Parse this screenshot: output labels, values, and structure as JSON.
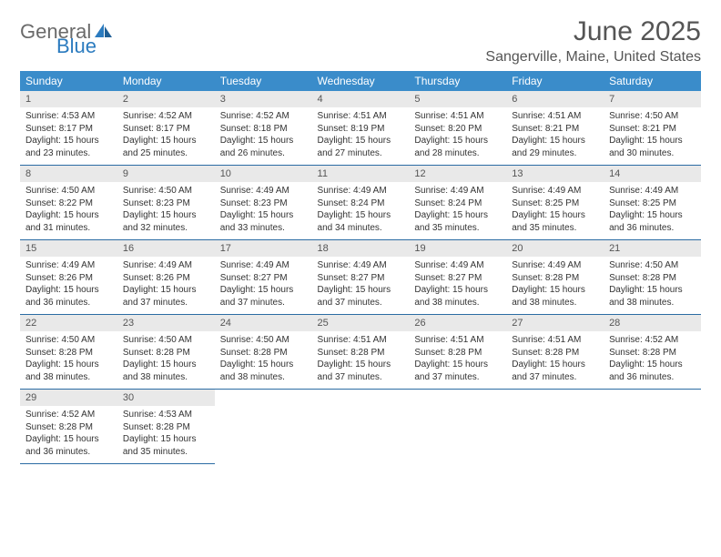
{
  "logo": {
    "part1": "General",
    "part2": "Blue"
  },
  "title": "June 2025",
  "location": "Sangerville, Maine, United States",
  "colors": {
    "header_bg": "#3a8cca",
    "header_text": "#ffffff",
    "daynum_bg": "#e9e9e9",
    "row_border": "#2b6ca3",
    "logo_grey": "#6a6a6a",
    "logo_blue": "#2b7bbf",
    "text": "#333333",
    "page_bg": "#ffffff"
  },
  "typography": {
    "title_fontsize": 30,
    "subtitle_fontsize": 16,
    "dayheader_fontsize": 12,
    "daynum_fontsize": 11,
    "body_fontsize": 10
  },
  "dayheaders": [
    "Sunday",
    "Monday",
    "Tuesday",
    "Wednesday",
    "Thursday",
    "Friday",
    "Saturday"
  ],
  "weeks": [
    [
      {
        "n": "1",
        "sr": "4:53 AM",
        "ss": "8:17 PM",
        "dl": "15 hours and 23 minutes."
      },
      {
        "n": "2",
        "sr": "4:52 AM",
        "ss": "8:17 PM",
        "dl": "15 hours and 25 minutes."
      },
      {
        "n": "3",
        "sr": "4:52 AM",
        "ss": "8:18 PM",
        "dl": "15 hours and 26 minutes."
      },
      {
        "n": "4",
        "sr": "4:51 AM",
        "ss": "8:19 PM",
        "dl": "15 hours and 27 minutes."
      },
      {
        "n": "5",
        "sr": "4:51 AM",
        "ss": "8:20 PM",
        "dl": "15 hours and 28 minutes."
      },
      {
        "n": "6",
        "sr": "4:51 AM",
        "ss": "8:21 PM",
        "dl": "15 hours and 29 minutes."
      },
      {
        "n": "7",
        "sr": "4:50 AM",
        "ss": "8:21 PM",
        "dl": "15 hours and 30 minutes."
      }
    ],
    [
      {
        "n": "8",
        "sr": "4:50 AM",
        "ss": "8:22 PM",
        "dl": "15 hours and 31 minutes."
      },
      {
        "n": "9",
        "sr": "4:50 AM",
        "ss": "8:23 PM",
        "dl": "15 hours and 32 minutes."
      },
      {
        "n": "10",
        "sr": "4:49 AM",
        "ss": "8:23 PM",
        "dl": "15 hours and 33 minutes."
      },
      {
        "n": "11",
        "sr": "4:49 AM",
        "ss": "8:24 PM",
        "dl": "15 hours and 34 minutes."
      },
      {
        "n": "12",
        "sr": "4:49 AM",
        "ss": "8:24 PM",
        "dl": "15 hours and 35 minutes."
      },
      {
        "n": "13",
        "sr": "4:49 AM",
        "ss": "8:25 PM",
        "dl": "15 hours and 35 minutes."
      },
      {
        "n": "14",
        "sr": "4:49 AM",
        "ss": "8:25 PM",
        "dl": "15 hours and 36 minutes."
      }
    ],
    [
      {
        "n": "15",
        "sr": "4:49 AM",
        "ss": "8:26 PM",
        "dl": "15 hours and 36 minutes."
      },
      {
        "n": "16",
        "sr": "4:49 AM",
        "ss": "8:26 PM",
        "dl": "15 hours and 37 minutes."
      },
      {
        "n": "17",
        "sr": "4:49 AM",
        "ss": "8:27 PM",
        "dl": "15 hours and 37 minutes."
      },
      {
        "n": "18",
        "sr": "4:49 AM",
        "ss": "8:27 PM",
        "dl": "15 hours and 37 minutes."
      },
      {
        "n": "19",
        "sr": "4:49 AM",
        "ss": "8:27 PM",
        "dl": "15 hours and 38 minutes."
      },
      {
        "n": "20",
        "sr": "4:49 AM",
        "ss": "8:28 PM",
        "dl": "15 hours and 38 minutes."
      },
      {
        "n": "21",
        "sr": "4:50 AM",
        "ss": "8:28 PM",
        "dl": "15 hours and 38 minutes."
      }
    ],
    [
      {
        "n": "22",
        "sr": "4:50 AM",
        "ss": "8:28 PM",
        "dl": "15 hours and 38 minutes."
      },
      {
        "n": "23",
        "sr": "4:50 AM",
        "ss": "8:28 PM",
        "dl": "15 hours and 38 minutes."
      },
      {
        "n": "24",
        "sr": "4:50 AM",
        "ss": "8:28 PM",
        "dl": "15 hours and 38 minutes."
      },
      {
        "n": "25",
        "sr": "4:51 AM",
        "ss": "8:28 PM",
        "dl": "15 hours and 37 minutes."
      },
      {
        "n": "26",
        "sr": "4:51 AM",
        "ss": "8:28 PM",
        "dl": "15 hours and 37 minutes."
      },
      {
        "n": "27",
        "sr": "4:51 AM",
        "ss": "8:28 PM",
        "dl": "15 hours and 37 minutes."
      },
      {
        "n": "28",
        "sr": "4:52 AM",
        "ss": "8:28 PM",
        "dl": "15 hours and 36 minutes."
      }
    ],
    [
      {
        "n": "29",
        "sr": "4:52 AM",
        "ss": "8:28 PM",
        "dl": "15 hours and 36 minutes."
      },
      {
        "n": "30",
        "sr": "4:53 AM",
        "ss": "8:28 PM",
        "dl": "15 hours and 35 minutes."
      },
      null,
      null,
      null,
      null,
      null
    ]
  ],
  "labels": {
    "sunrise": "Sunrise: ",
    "sunset": "Sunset: ",
    "daylight": "Daylight: "
  }
}
